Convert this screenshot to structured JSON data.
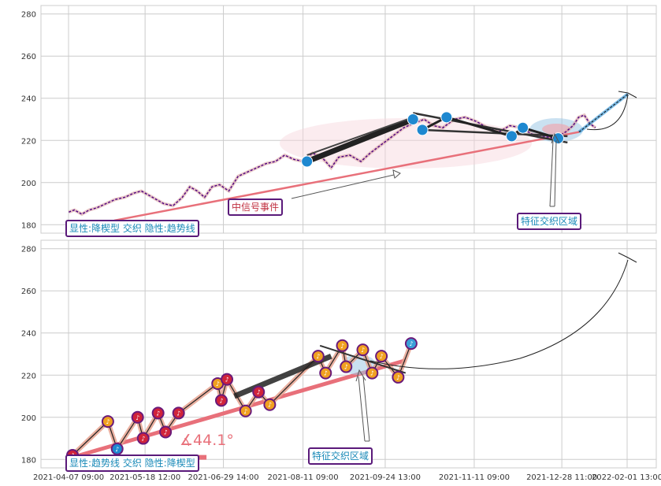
{
  "chart_data": [
    {
      "type": "line",
      "title": "",
      "xlabel": "",
      "ylabel": "",
      "ylim": [
        176,
        284
      ],
      "yticks": [
        180,
        200,
        220,
        240,
        260,
        280
      ],
      "grid": true,
      "colors": {
        "price": "#4b0082",
        "trend": "#e8707a",
        "thick": "#333333",
        "marker": "#1e88d0",
        "box_border": "#5a1a7a",
        "box_text": "#1a8ab8",
        "event_text": "#c03040"
      },
      "series": [
        {
          "values": [
            [
              "2021-04-07",
              186
            ],
            [
              "2021-04-10",
              187
            ],
            [
              "2021-04-14",
              185
            ],
            [
              "2021-04-18",
              187
            ],
            [
              "2021-04-22",
              188
            ],
            [
              "2021-04-27",
              190
            ],
            [
              "2021-05-02",
              192
            ],
            [
              "2021-05-07",
              193
            ],
            [
              "2021-05-12",
              195
            ],
            [
              "2021-05-16",
              196
            ],
            [
              "2021-05-22",
              193
            ],
            [
              "2021-05-28",
              190
            ],
            [
              "2021-06-02",
              189
            ],
            [
              "2021-06-07",
              193
            ],
            [
              "2021-06-11",
              198
            ],
            [
              "2021-06-15",
              196
            ],
            [
              "2021-06-19",
              193
            ],
            [
              "2021-06-23",
              198
            ],
            [
              "2021-06-27",
              199
            ],
            [
              "2021-07-02",
              196
            ],
            [
              "2021-07-07",
              203
            ],
            [
              "2021-07-12",
              205
            ],
            [
              "2021-07-17",
              207
            ],
            [
              "2021-07-22",
              209
            ],
            [
              "2021-07-27",
              210
            ],
            [
              "2021-08-01",
              213
            ],
            [
              "2021-08-06",
              211
            ],
            [
              "2021-08-11",
              210
            ],
            [
              "2021-08-16",
              214
            ],
            [
              "2021-08-21",
              212
            ],
            [
              "2021-08-26",
              207
            ],
            [
              "2021-08-30",
              212
            ],
            [
              "2021-09-05",
              213
            ],
            [
              "2021-09-11",
              210
            ],
            [
              "2021-09-16",
              214
            ],
            [
              "2021-09-22",
              218
            ],
            [
              "2021-09-28",
              222
            ],
            [
              "2021-10-04",
              226
            ],
            [
              "2021-10-09",
              228
            ],
            [
              "2021-10-15",
              230
            ],
            [
              "2021-10-20",
              227
            ],
            [
              "2021-10-25",
              226
            ],
            [
              "2021-10-31",
              230
            ],
            [
              "2021-11-06",
              231
            ],
            [
              "2021-11-12",
              229
            ],
            [
              "2021-11-18",
              226
            ],
            [
              "2021-11-24",
              224
            ],
            [
              "2021-11-30",
              227
            ],
            [
              "2021-12-06",
              226
            ],
            [
              "2021-12-12",
              223
            ],
            [
              "2021-12-18",
              222
            ],
            [
              "2021-12-24",
              221
            ],
            [
              "2021-12-30",
              224
            ],
            [
              "2022-01-03",
              227
            ],
            [
              "2022-01-06",
              231
            ],
            [
              "2022-01-09",
              232
            ],
            [
              "2022-01-12",
              228
            ],
            [
              "2022-01-15",
              226
            ]
          ]
        }
      ],
      "markers": [
        [
          "2021-08-13",
          210
        ],
        [
          "2021-10-09",
          230
        ],
        [
          "2021-10-14",
          225
        ],
        [
          "2021-10-27",
          231
        ],
        [
          "2021-12-01",
          222
        ],
        [
          "2021-12-07",
          226
        ],
        [
          "2021-12-26",
          221
        ]
      ],
      "annotations": {
        "event_label": "中信号事件",
        "region_label": "特征交织区域",
        "pattern_label": "显性:降楔型 交织 隐性:趋势线"
      }
    },
    {
      "type": "line",
      "title": "",
      "xlabel": "",
      "ylabel": "",
      "ylim": [
        176,
        284
      ],
      "yticks": [
        180,
        200,
        220,
        240,
        260,
        280
      ],
      "xticks": [
        "2021-04-07 09:00",
        "2021-05-18 12:00",
        "2021-06-29 14:00",
        "2021-08-11 09:00",
        "2021-09-24 13:00",
        "2021-11-11 09:00",
        "2021-12-28 11:00",
        "2022-02-01 13:00"
      ],
      "grid": true,
      "zigzag": [
        [
          "2021-04-09",
          182
        ],
        [
          "2021-04-28",
          198
        ],
        [
          "2021-05-03",
          185
        ],
        [
          "2021-05-14",
          200
        ],
        [
          "2021-05-17",
          190
        ],
        [
          "2021-05-25",
          202
        ],
        [
          "2021-05-29",
          193
        ],
        [
          "2021-06-05",
          202
        ],
        [
          "2021-06-26",
          216
        ],
        [
          "2021-06-28",
          208
        ],
        [
          "2021-07-01",
          218
        ],
        [
          "2021-07-11",
          203
        ],
        [
          "2021-07-18",
          212
        ],
        [
          "2021-07-24",
          206
        ],
        [
          "2021-08-19",
          229
        ],
        [
          "2021-08-23",
          221
        ],
        [
          "2021-09-01",
          234
        ],
        [
          "2021-09-03",
          224
        ],
        [
          "2021-09-12",
          232
        ],
        [
          "2021-09-17",
          221
        ],
        [
          "2021-09-22",
          229
        ],
        [
          "2021-10-01",
          219
        ],
        [
          "2021-10-08",
          235
        ]
      ],
      "markers_note": "♪",
      "angle_label": "∡44.1°",
      "annotations": {
        "region_label": "特征交织区域",
        "pattern_label": "显性:趋势线 交织 隐性:降楔型"
      }
    }
  ]
}
